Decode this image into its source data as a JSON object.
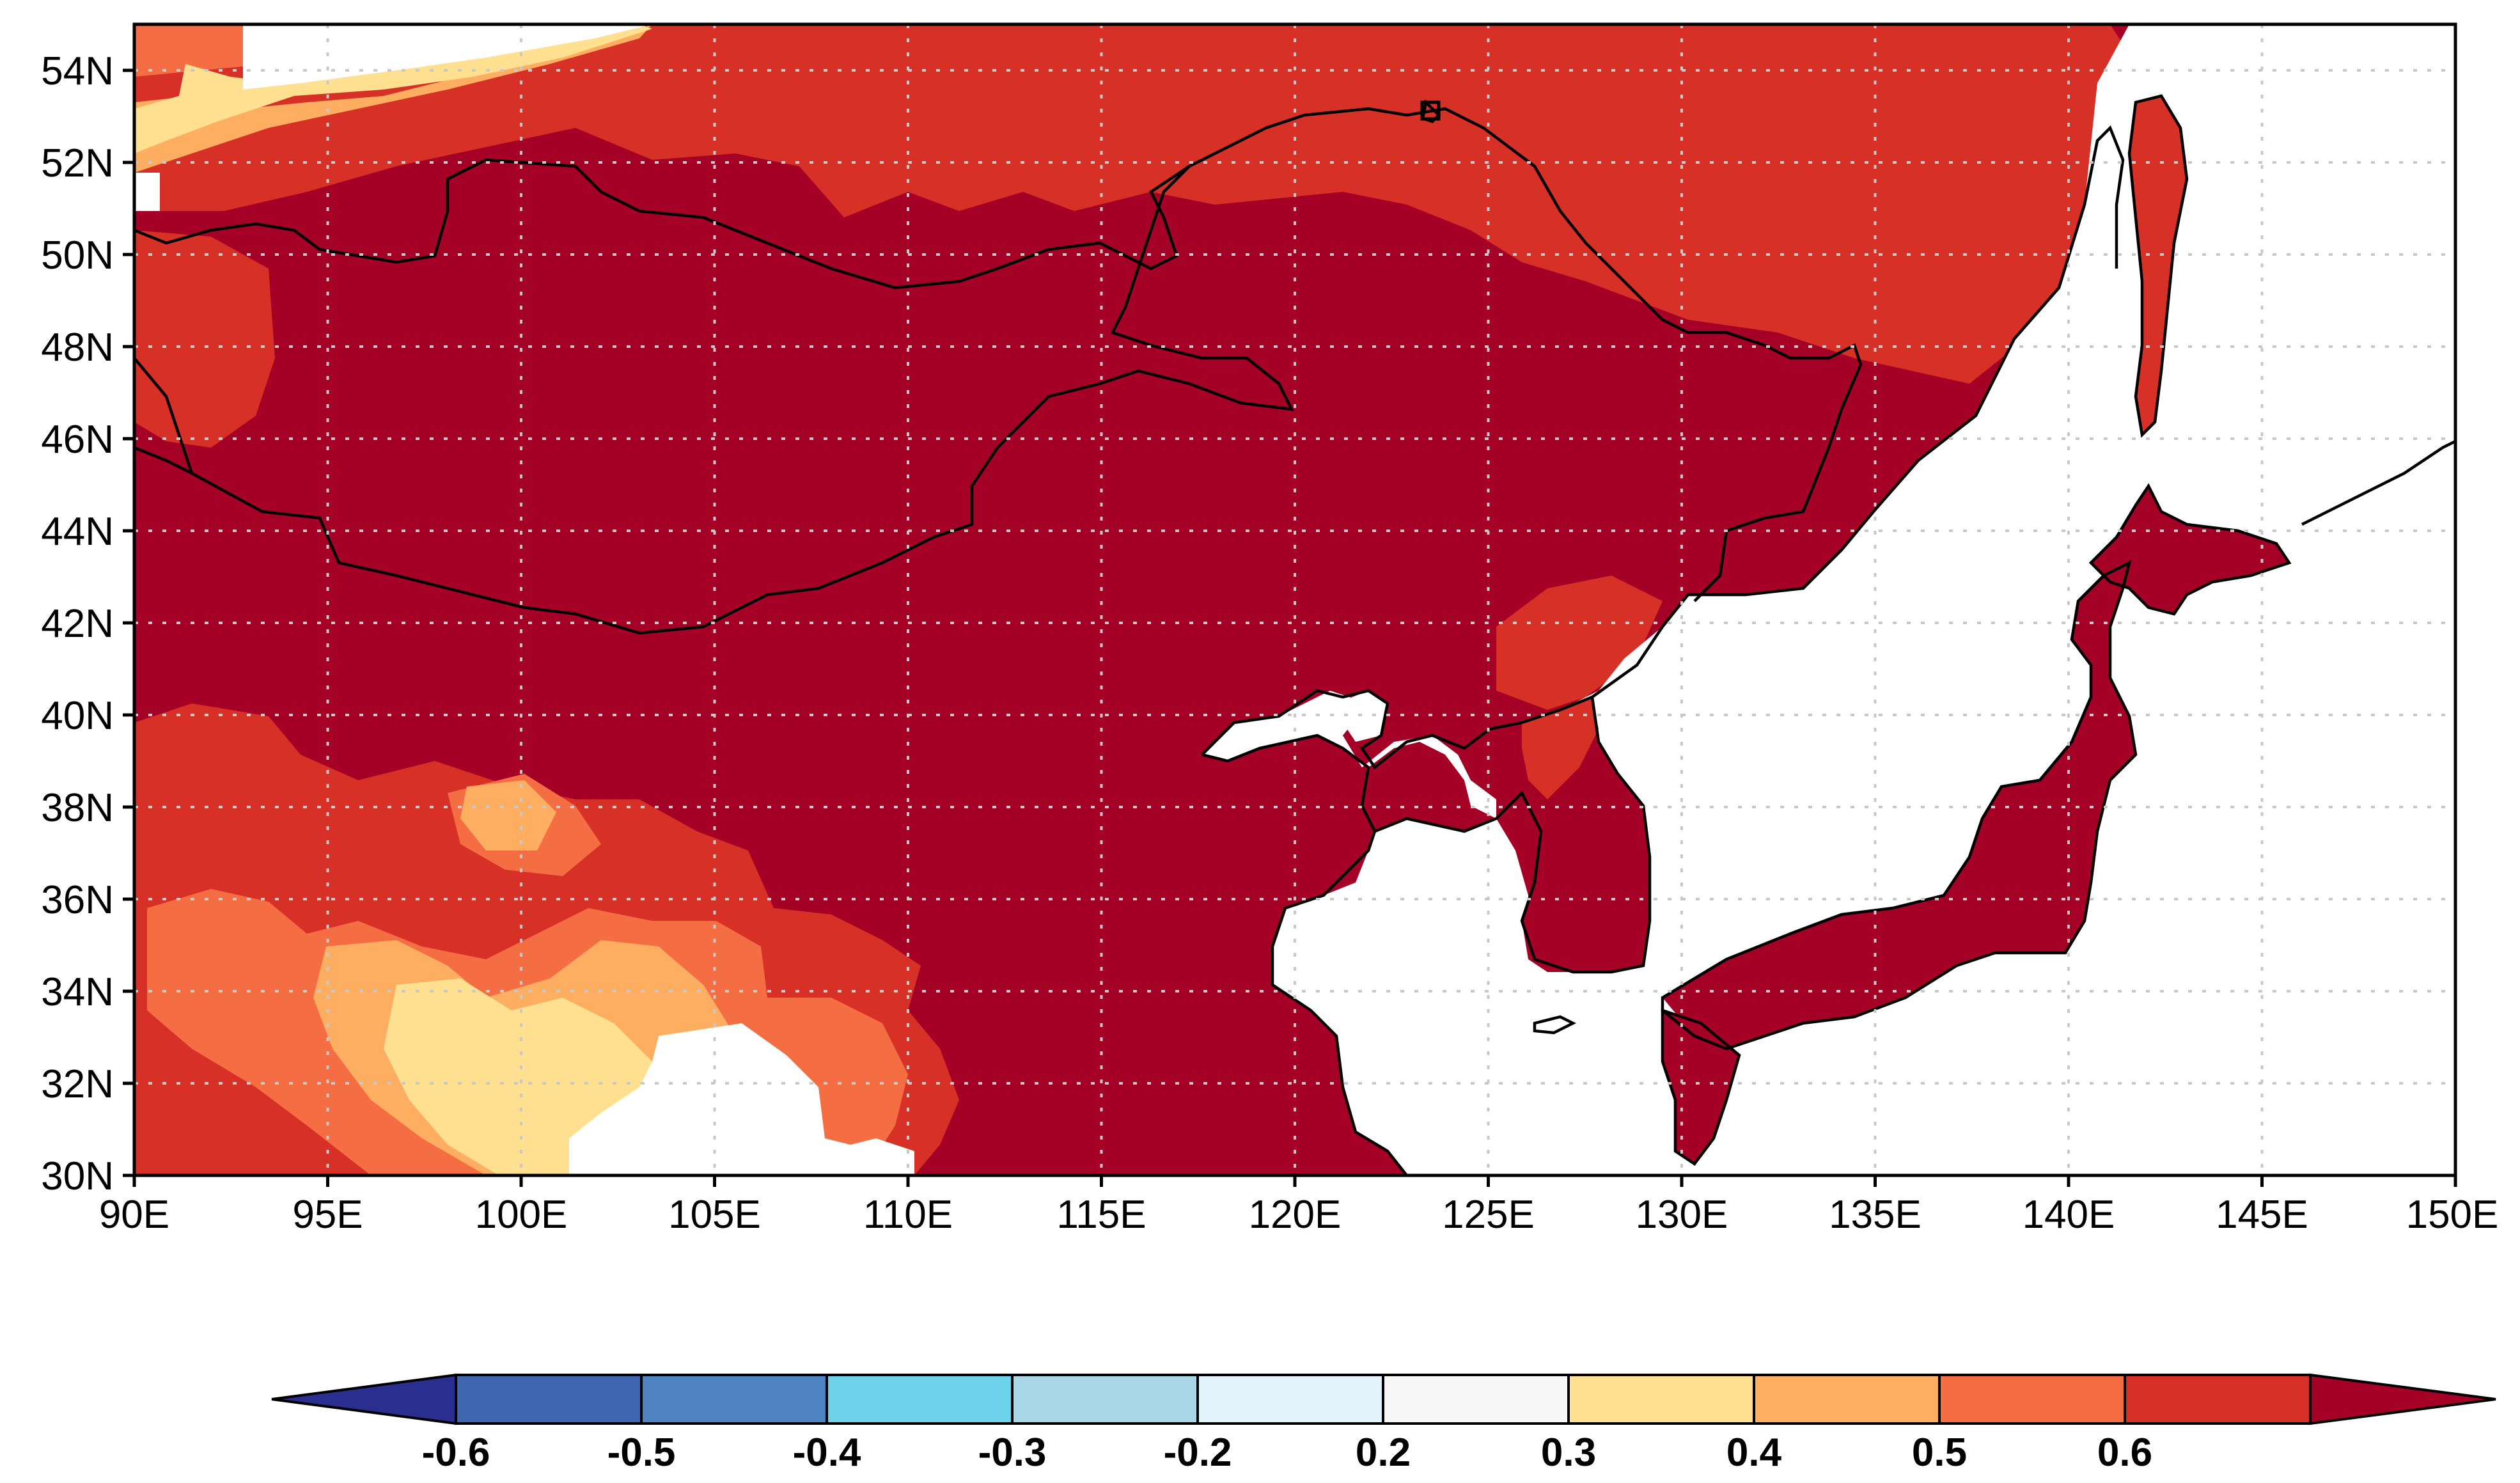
{
  "map": {
    "projection": "cylindrical-equidistant",
    "lon_range": [
      90,
      150
    ],
    "lat_range": [
      30,
      55
    ],
    "x_ticks": [
      "90E",
      "95E",
      "100E",
      "105E",
      "110E",
      "115E",
      "120E",
      "125E",
      "130E",
      "135E",
      "140E",
      "145E",
      "150E"
    ],
    "y_ticks": [
      "30N",
      "32N",
      "34N",
      "36N",
      "38N",
      "40N",
      "42N",
      "44N",
      "46N",
      "48N",
      "50N",
      "52N",
      "54N"
    ],
    "grid": "dotted",
    "dominant_level": "> 0.6",
    "fill_colors": {
      "gt_0_6": "#a50026",
      "0_5_to_0_6": "#d73027",
      "0_4_to_0_5": "#f46d43",
      "0_3_to_0_4": "#fdae61",
      "0_2_to_0_3": "#fee090",
      "no_data": "#ffffff"
    }
  },
  "colorbar": {
    "labels": [
      "-0.6",
      "-0.5",
      "-0.4",
      "-0.3",
      "-0.2",
      "0.2",
      "0.3",
      "0.4",
      "0.5",
      "0.6"
    ],
    "under_color": "#2a2f8f",
    "colors": [
      "#3f66b0",
      "#4f84c4",
      "#6cd3ea",
      "#a8d8e8",
      "#e3f3fb",
      "#f7f7f7",
      "#fee090",
      "#fdae61",
      "#f46d43",
      "#d73027"
    ],
    "over_color": "#a50026"
  }
}
